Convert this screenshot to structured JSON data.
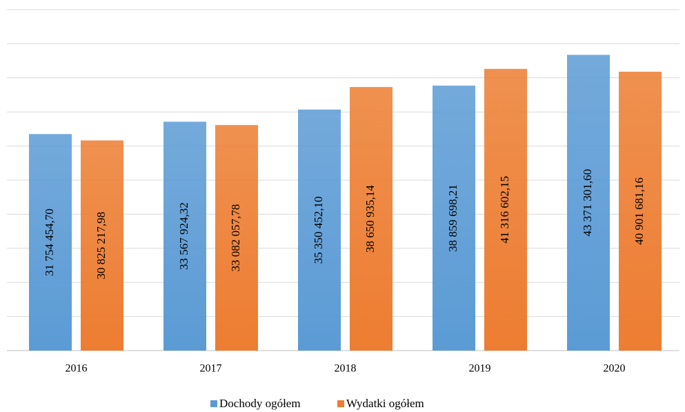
{
  "chart_data": {
    "type": "bar",
    "categories": [
      "2016",
      "2017",
      "2018",
      "2019",
      "2020"
    ],
    "series": [
      {
        "name": "Dochody ogółem",
        "color": "#5b9bd5",
        "values": [
          31754454.7,
          33567924.32,
          35350452.1,
          38859698.21,
          43371301.6
        ],
        "value_labels": [
          "31 754 454,70",
          "33 567 924,32",
          "35 350 452,10",
          "38 859 698,21",
          "43 371 301,60"
        ]
      },
      {
        "name": "Wydatki ogółem",
        "color": "#ed7d31",
        "values": [
          30825217.98,
          33082057.78,
          38650935.14,
          41316602.15,
          40901681.16
        ],
        "value_labels": [
          "30 825 217,98",
          "33 082 057,78",
          "38 650 935,14",
          "41 316 602,15",
          "40 901 681,16"
        ]
      }
    ],
    "ylim": [
      0,
      50000000
    ],
    "yticks": [
      0,
      5000000,
      10000000,
      15000000,
      20000000,
      25000000,
      30000000,
      35000000,
      40000000,
      45000000,
      50000000
    ],
    "grid": true,
    "legend": "bottom"
  }
}
